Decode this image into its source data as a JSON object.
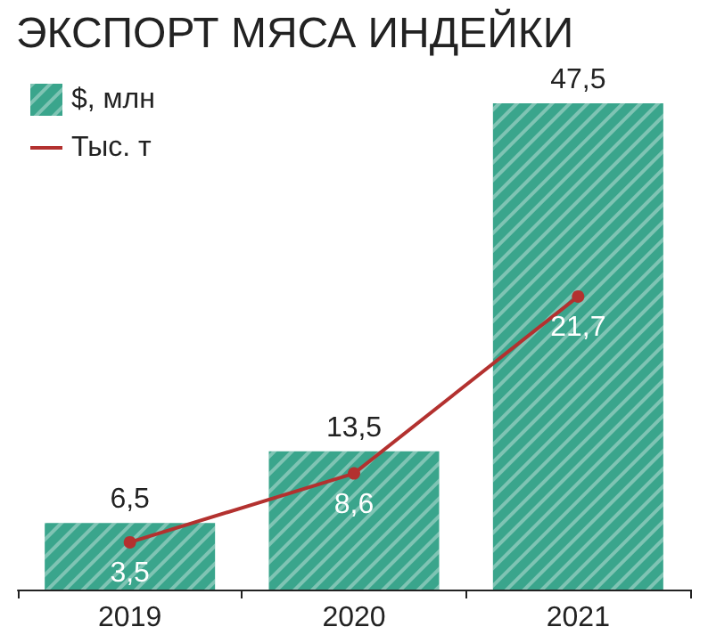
{
  "chart_data": {
    "type": "bar",
    "title": "ЭКСПОРТ МЯСА ИНДЕЙКИ",
    "categories": [
      "2019",
      "2020",
      "2021"
    ],
    "series": [
      {
        "name": "$, млн",
        "color": "#3aa58c",
        "values": [
          6.5,
          13.5,
          47.5
        ],
        "value_labels": [
          "6,5",
          "13,5",
          "47,5"
        ]
      },
      {
        "name": "Тыс. т",
        "type": "line",
        "axis": "y2",
        "color": "#b3312f",
        "values": [
          3.5,
          8.6,
          21.7
        ],
        "value_labels": [
          "3,5",
          "8,6",
          "21,7"
        ]
      }
    ],
    "ylim": [
      0,
      47.5
    ],
    "y2lim": [
      0,
      36
    ],
    "legend": "top left",
    "marker": "circle",
    "line_style": "solid"
  }
}
